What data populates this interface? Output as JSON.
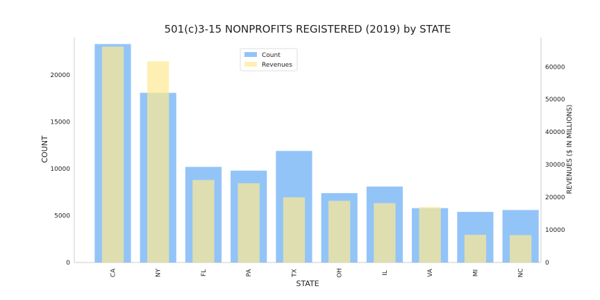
{
  "chart_data": {
    "type": "bar",
    "title": "501(c)3-15 NONPROFITS REGISTERED (2019) by STATE",
    "xlabel": "STATE",
    "ylabel": "COUNT",
    "ylabel_right": "REVENUES ($ IN MILLIONS)",
    "categories": [
      "CA",
      "NY",
      "FL",
      "PA",
      "TX",
      "OH",
      "IL",
      "VA",
      "MI",
      "NC"
    ],
    "ylim": [
      0,
      24000
    ],
    "ylim_right": [
      0,
      69000
    ],
    "yticks": [
      0,
      5000,
      10000,
      15000,
      20000
    ],
    "yticks_right": [
      0,
      10000,
      20000,
      30000,
      40000,
      50000,
      60000
    ],
    "grid": false,
    "legend_position": "upper center",
    "series": [
      {
        "name": "Count",
        "axis": "left",
        "color": "#6fb0f5",
        "values": [
          23300,
          18100,
          10200,
          9800,
          11900,
          7400,
          8100,
          5800,
          5400,
          5600
        ]
      },
      {
        "name": "Revenues",
        "axis": "right",
        "color": "#fde992",
        "values": [
          66200,
          61700,
          25300,
          24300,
          20000,
          18900,
          18200,
          17000,
          8500,
          8400
        ]
      }
    ]
  }
}
